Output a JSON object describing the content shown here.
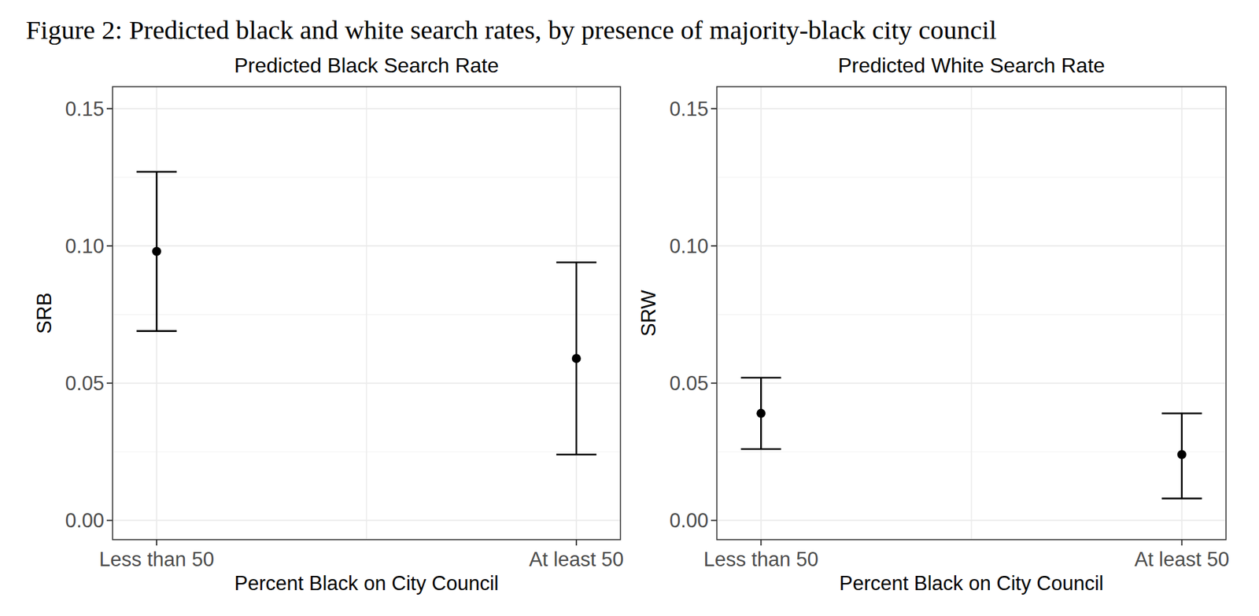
{
  "title": "Figure 2: Predicted black and white search rates, by presence of majority-black city council",
  "chart_data": [
    {
      "type": "point",
      "title": "Predicted Black Search Rate",
      "x_label": "Percent Black on City Council",
      "y_label": "SRB",
      "categories": [
        "Less than 50",
        "At least 50"
      ],
      "values": [
        0.098,
        0.059
      ],
      "lower": [
        0.069,
        0.024
      ],
      "upper": [
        0.127,
        0.094
      ],
      "color": "#000000",
      "ylim": [
        -0.007,
        0.158
      ],
      "yticks": [
        {
          "value": 0,
          "label": "0.00"
        },
        {
          "value": 0.05,
          "label": "0.05"
        },
        {
          "value": 0.1,
          "label": "0.10"
        },
        {
          "value": 0.15,
          "label": "0.15"
        }
      ],
      "grid": true
    },
    {
      "type": "point",
      "title": "Predicted White Search Rate",
      "x_label": "Percent Black on City Council",
      "y_label": "SRW",
      "categories": [
        "Less than 50",
        "At least 50"
      ],
      "values": [
        0.039,
        0.024
      ],
      "lower": [
        0.026,
        0.008
      ],
      "upper": [
        0.052,
        0.039
      ],
      "color": "#000000",
      "ylim": [
        -0.007,
        0.158
      ],
      "yticks": [
        {
          "value": 0,
          "label": "0.00"
        },
        {
          "value": 0.05,
          "label": "0.05"
        },
        {
          "value": 0.1,
          "label": "0.10"
        },
        {
          "value": 0.15,
          "label": "0.15"
        }
      ],
      "grid": true
    }
  ]
}
